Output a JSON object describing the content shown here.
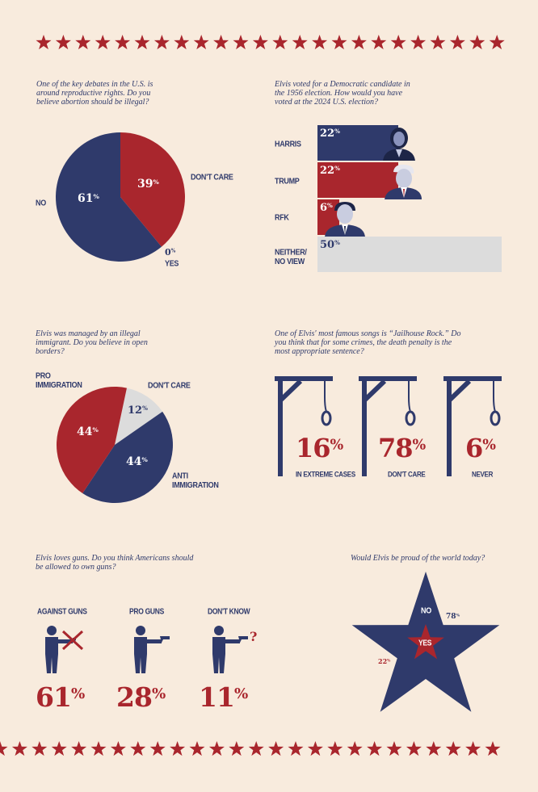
{
  "colors": {
    "navy": "#2f3a6b",
    "red": "#a9262d",
    "light_gray": "#dcdcdc",
    "background": "#f8ebdd"
  },
  "q1": {
    "question": "One of the key debates in the U.S. is around reproductive rights. Do you believe abortion should be illegal?"
  },
  "q2": {
    "question": "Elvis voted for a Democratic candidate in the 1956 election. How would you have voted at the 2024 U.S. election?"
  },
  "q3": {
    "question": "Elvis was managed by an illegal immigrant. Do you believe in open borders?"
  },
  "q4": {
    "question": "One of Elvis' most famous songs is “Jailhouse Rock.” Do you think that for some crimes, the death penalty is the most appropriate sentence?"
  },
  "q5": {
    "question": "Elvis loves guns. Do you think Americans should be allowed to own guns?"
  },
  "q6": {
    "question": "Would Elvis be proud of the world today?"
  },
  "chart_data": [
    {
      "type": "pie",
      "categories": [
        "NO",
        "DON'T CARE",
        "YES"
      ],
      "values": [
        61,
        39,
        0
      ],
      "labels": [
        "61%",
        "39%",
        "0%"
      ]
    },
    {
      "type": "bar",
      "categories": [
        "HARRIS",
        "TRUMP",
        "RFK",
        "NEITHER/ NO VIEW"
      ],
      "values": [
        22,
        22,
        6,
        50
      ],
      "labels": [
        "22%",
        "22%",
        "6%",
        "50%"
      ],
      "colors": [
        "#2f3a6b",
        "#a9262d",
        "#a9262d",
        "#dcdcdc"
      ],
      "xlim": [
        0,
        50
      ]
    },
    {
      "type": "pie",
      "categories": [
        "PRO IMMIGRATION",
        "DON'T CARE",
        "ANTI IMMIGRATION"
      ],
      "values": [
        44,
        12,
        44
      ],
      "labels": [
        "44%",
        "12%",
        "44%"
      ]
    },
    {
      "type": "bar",
      "categories": [
        "IN EXTREME CASES",
        "DON'T CARE",
        "NEVER"
      ],
      "values": [
        16,
        78,
        6
      ],
      "labels": [
        "16%",
        "78%",
        "6%"
      ]
    },
    {
      "type": "bar",
      "categories": [
        "AGAINST GUNS",
        "PRO GUNS",
        "DON'T KNOW"
      ],
      "values": [
        61,
        28,
        11
      ],
      "labels": [
        "61%",
        "28%",
        "11%"
      ],
      "icon_marks": [
        "x-mark",
        "none",
        "question-mark"
      ]
    },
    {
      "type": "pie",
      "categories": [
        "NO",
        "YES"
      ],
      "values": [
        78,
        22
      ],
      "labels": [
        "78%",
        "22%"
      ]
    }
  ]
}
